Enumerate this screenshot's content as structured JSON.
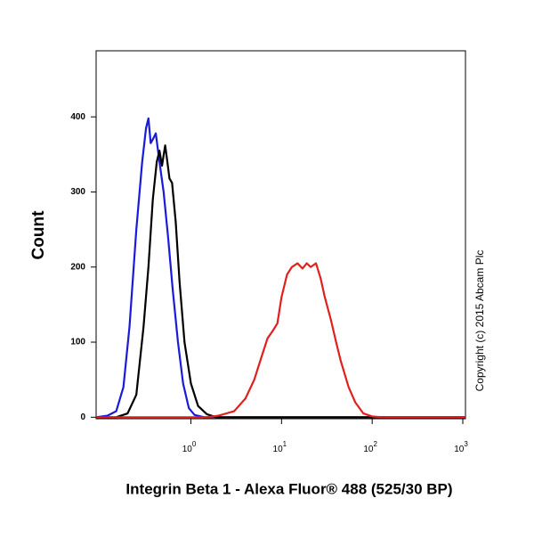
{
  "chart_data": {
    "type": "line",
    "xscale": "log",
    "ylabel": "Count",
    "xlabel": "Integrin Beta 1 - Alexa Fluor® 488 (525/30 BP)",
    "annotation": "Copyright (c) 2015 Abcam Plc",
    "xlim": [
      0.09,
      1070
    ],
    "ylim": [
      -2,
      488
    ],
    "xticks": [
      {
        "value": 1,
        "label": "10",
        "exponent": "0"
      },
      {
        "value": 10,
        "label": "10",
        "exponent": "1"
      },
      {
        "value": 100,
        "label": "10",
        "exponent": "2"
      },
      {
        "value": 1000,
        "label": "10",
        "exponent": "3"
      }
    ],
    "yticks": [
      0,
      100,
      200,
      300,
      400
    ],
    "series": [
      {
        "color": "#1a1adb",
        "x": [
          0.09,
          0.12,
          0.15,
          0.18,
          0.21,
          0.25,
          0.29,
          0.32,
          0.34,
          0.36,
          0.38,
          0.41,
          0.45,
          0.5,
          0.56,
          0.63,
          0.72,
          0.82,
          0.95,
          1.1,
          1.4,
          2,
          1070
        ],
        "values": [
          0,
          2,
          8,
          40,
          120,
          250,
          340,
          385,
          398,
          365,
          370,
          378,
          340,
          300,
          240,
          170,
          100,
          45,
          12,
          3,
          0,
          0,
          0
        ]
      },
      {
        "color": "#000000",
        "x": [
          0.09,
          0.15,
          0.2,
          0.25,
          0.3,
          0.34,
          0.38,
          0.42,
          0.45,
          0.48,
          0.52,
          0.55,
          0.58,
          0.62,
          0.68,
          0.75,
          0.85,
          1.0,
          1.2,
          1.5,
          1.9,
          1070
        ],
        "values": [
          0,
          0,
          5,
          30,
          120,
          200,
          290,
          340,
          355,
          335,
          362,
          340,
          318,
          312,
          260,
          180,
          100,
          45,
          15,
          4,
          0,
          0
        ]
      },
      {
        "color": "#e0201c",
        "x": [
          0.09,
          1.5,
          2,
          3,
          4,
          5,
          6,
          7,
          8,
          9,
          10,
          11.5,
          13,
          15,
          17,
          19,
          21,
          24,
          27,
          30,
          35,
          40,
          45,
          55,
          65,
          80,
          100,
          130,
          1070
        ],
        "values": [
          0,
          0,
          2,
          8,
          25,
          50,
          80,
          105,
          115,
          125,
          160,
          190,
          200,
          205,
          198,
          205,
          200,
          205,
          185,
          160,
          130,
          100,
          75,
          40,
          20,
          5,
          1,
          0,
          0
        ]
      }
    ]
  }
}
